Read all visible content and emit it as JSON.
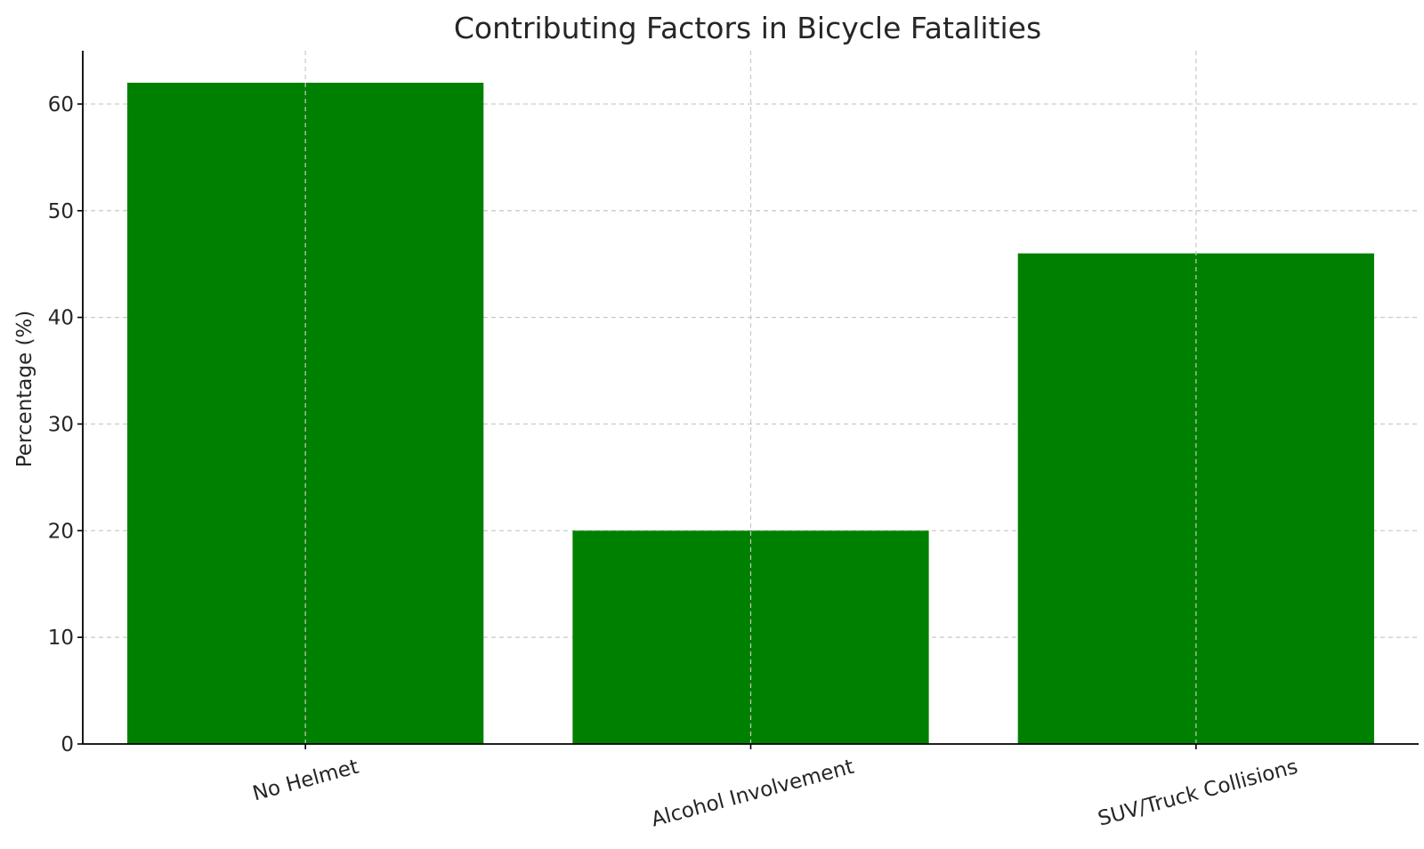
{
  "chart_data": {
    "type": "bar",
    "title": "Contributing Factors in Bicycle Fatalities",
    "xlabel": "",
    "ylabel": "Percentage (%)",
    "categories": [
      "No Helmet",
      "Alcohol Involvement",
      "SUV/Truck Collisions"
    ],
    "values": [
      62,
      20,
      46
    ],
    "ylim": [
      0,
      65
    ],
    "yticks": [
      0,
      10,
      20,
      30,
      40,
      50,
      60
    ],
    "grid": true,
    "bar_color": "#008000"
  }
}
